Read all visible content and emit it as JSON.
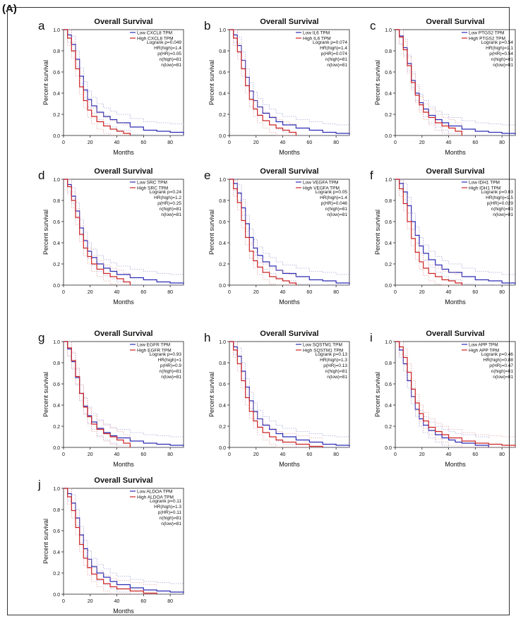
{
  "figure_label": "(A)",
  "colors": {
    "low": "#2b2bb5",
    "high": "#cc2222",
    "ci_low": "#8080c8",
    "ci_high": "#d78080",
    "axis": "#222222"
  },
  "chart_data": [
    {
      "panel": "a",
      "type": "line",
      "title": "Overall Survival",
      "xlabel": "Months",
      "ylabel": "Percent survival",
      "xlim": [
        0,
        90
      ],
      "ylim": [
        0,
        1
      ],
      "xticks": [
        0,
        20,
        40,
        60,
        80
      ],
      "yticks": [
        0.0,
        0.2,
        0.4,
        0.6,
        0.8,
        1.0
      ],
      "legend": [
        "Low CXCL8 TPM",
        "High CXCL8 TPM"
      ],
      "stats": [
        "Logrank p=0.049",
        "HR(high)=1.4",
        "p(HR)=0.05",
        "n(high)=81",
        "n(low)=81"
      ],
      "series": [
        {
          "name": "Low CXCL8 TPM",
          "x": [
            0,
            3,
            6,
            9,
            12,
            15,
            18,
            21,
            25,
            30,
            35,
            40,
            50,
            60,
            70,
            80,
            90
          ],
          "values": [
            1.0,
            0.95,
            0.86,
            0.72,
            0.56,
            0.43,
            0.34,
            0.28,
            0.22,
            0.18,
            0.15,
            0.12,
            0.08,
            0.05,
            0.04,
            0.03,
            0.01
          ]
        },
        {
          "name": "High CXCL8 TPM",
          "x": [
            0,
            3,
            6,
            9,
            12,
            15,
            18,
            21,
            25,
            30,
            35,
            40,
            45,
            50
          ],
          "values": [
            1.0,
            0.92,
            0.8,
            0.63,
            0.46,
            0.33,
            0.24,
            0.18,
            0.13,
            0.09,
            0.06,
            0.04,
            0.02,
            0.0
          ]
        }
      ]
    },
    {
      "panel": "b",
      "type": "line",
      "title": "Overall Survival",
      "xlabel": "Months",
      "ylabel": "Percent survival",
      "xlim": [
        0,
        90
      ],
      "ylim": [
        0,
        1
      ],
      "xticks": [
        0,
        20,
        40,
        60,
        80
      ],
      "yticks": [
        0.0,
        0.2,
        0.4,
        0.6,
        0.8,
        1.0
      ],
      "legend": [
        "Low IL6 TPM",
        "High IL6 TPM"
      ],
      "stats": [
        "Logrank p=0.074",
        "HR(high)=1.4",
        "p(HR)=0.074",
        "n(high)=81",
        "n(low)=81"
      ],
      "series": [
        {
          "name": "Low IL6 TPM",
          "x": [
            0,
            3,
            6,
            9,
            12,
            15,
            18,
            21,
            25,
            30,
            35,
            40,
            50,
            60,
            70,
            80,
            90
          ],
          "values": [
            1.0,
            0.95,
            0.85,
            0.71,
            0.55,
            0.42,
            0.33,
            0.27,
            0.21,
            0.17,
            0.13,
            0.1,
            0.07,
            0.05,
            0.03,
            0.02,
            0.01
          ]
        },
        {
          "name": "High IL6 TPM",
          "x": [
            0,
            3,
            6,
            9,
            12,
            15,
            18,
            21,
            25,
            30,
            35,
            40,
            45,
            50
          ],
          "values": [
            1.0,
            0.92,
            0.79,
            0.63,
            0.47,
            0.34,
            0.25,
            0.19,
            0.14,
            0.1,
            0.07,
            0.05,
            0.03,
            0.0
          ]
        }
      ]
    },
    {
      "panel": "c",
      "type": "line",
      "title": "Overall Survival",
      "xlabel": "Months",
      "ylabel": "Percent survival",
      "xlim": [
        0,
        90
      ],
      "ylim": [
        0,
        1
      ],
      "xticks": [
        0,
        20,
        40,
        60,
        80
      ],
      "yticks": [
        0.0,
        0.2,
        0.4,
        0.6,
        0.8,
        1.0
      ],
      "legend": [
        "Low PTGS2 TPM",
        "High PTGS2 TPM"
      ],
      "stats": [
        "Logrank p=0.54",
        "HR(high)=1.1",
        "p(HR)=0.54",
        "n(high)=81",
        "n(low)=81"
      ],
      "series": [
        {
          "name": "Low PTGS2 TPM",
          "x": [
            0,
            3,
            6,
            9,
            12,
            15,
            18,
            21,
            25,
            30,
            35,
            40,
            50,
            60,
            70,
            80,
            90
          ],
          "values": [
            1.0,
            0.94,
            0.83,
            0.68,
            0.52,
            0.4,
            0.31,
            0.25,
            0.19,
            0.15,
            0.12,
            0.09,
            0.06,
            0.04,
            0.03,
            0.02,
            0.01
          ]
        },
        {
          "name": "High PTGS2 TPM",
          "x": [
            0,
            3,
            6,
            9,
            12,
            15,
            18,
            21,
            25,
            30,
            35,
            40,
            45,
            50
          ],
          "values": [
            1.0,
            0.93,
            0.81,
            0.66,
            0.5,
            0.38,
            0.29,
            0.22,
            0.17,
            0.12,
            0.09,
            0.07,
            0.04,
            0.0
          ]
        }
      ]
    },
    {
      "panel": "d",
      "type": "line",
      "title": "Overall Survival",
      "xlabel": "Months",
      "ylabel": "Percent survival",
      "xlim": [
        0,
        90
      ],
      "ylim": [
        0,
        1
      ],
      "xticks": [
        0,
        20,
        40,
        60,
        80
      ],
      "yticks": [
        0.0,
        0.2,
        0.4,
        0.6,
        0.8,
        1.0
      ],
      "legend": [
        "Low SRC TPM",
        "High SRC TPM"
      ],
      "stats": [
        "Logrank p=0.24",
        "HR(high)=1.2",
        "p(HR)=0.25",
        "n(high)=81",
        "n(low)=81"
      ],
      "series": [
        {
          "name": "Low SRC TPM",
          "x": [
            0,
            3,
            6,
            9,
            12,
            15,
            18,
            21,
            25,
            30,
            35,
            40,
            50,
            60,
            70,
            80,
            90
          ],
          "values": [
            1.0,
            0.95,
            0.84,
            0.7,
            0.54,
            0.42,
            0.32,
            0.26,
            0.2,
            0.16,
            0.13,
            0.1,
            0.07,
            0.05,
            0.03,
            0.02,
            0.01
          ]
        },
        {
          "name": "High SRC TPM",
          "x": [
            0,
            3,
            6,
            9,
            12,
            15,
            18,
            21,
            25,
            30,
            35,
            40,
            45,
            50
          ],
          "values": [
            1.0,
            0.93,
            0.8,
            0.64,
            0.48,
            0.35,
            0.27,
            0.2,
            0.15,
            0.11,
            0.08,
            0.06,
            0.03,
            0.0
          ]
        }
      ]
    },
    {
      "panel": "e",
      "type": "line",
      "title": "Overall Survival",
      "xlabel": "Months",
      "ylabel": "Percent survival",
      "xlim": [
        0,
        90
      ],
      "ylim": [
        0,
        1
      ],
      "xticks": [
        0,
        20,
        40,
        60,
        80
      ],
      "yticks": [
        0.0,
        0.2,
        0.4,
        0.6,
        0.8,
        1.0
      ],
      "legend": [
        "Low VEGFA TPM",
        "High VEGFA TPM"
      ],
      "stats": [
        "Logrank p=0.05",
        "HR(high)=1.4",
        "p(HR)=0.046",
        "n(high)=81",
        "n(low)=81"
      ],
      "series": [
        {
          "name": "Low VEGFA TPM",
          "x": [
            0,
            3,
            6,
            9,
            12,
            15,
            18,
            21,
            25,
            30,
            35,
            40,
            50,
            60,
            70,
            80,
            90
          ],
          "values": [
            1.0,
            0.96,
            0.87,
            0.73,
            0.58,
            0.45,
            0.35,
            0.28,
            0.22,
            0.18,
            0.14,
            0.11,
            0.08,
            0.05,
            0.04,
            0.02,
            0.01
          ]
        },
        {
          "name": "High VEGFA TPM",
          "x": [
            0,
            3,
            6,
            9,
            12,
            15,
            18,
            21,
            25,
            30,
            35,
            40,
            45,
            50
          ],
          "values": [
            1.0,
            0.91,
            0.78,
            0.61,
            0.45,
            0.32,
            0.23,
            0.17,
            0.12,
            0.08,
            0.06,
            0.04,
            0.02,
            0.0
          ]
        }
      ]
    },
    {
      "panel": "f",
      "type": "line",
      "title": "Overall Survival",
      "xlabel": "Months",
      "ylabel": "Percent survival",
      "xlim": [
        0,
        90
      ],
      "ylim": [
        0,
        1
      ],
      "xticks": [
        0,
        20,
        40,
        60,
        80
      ],
      "yticks": [
        0.0,
        0.2,
        0.4,
        0.6,
        0.8,
        1.0
      ],
      "legend": [
        "Low IDH1 TPM",
        "High IDH1 TPM"
      ],
      "stats": [
        "Logrank p=0.03",
        "HR(high)=1.5",
        "p(HR)=0.029",
        "n(high)=81",
        "n(low)=81"
      ],
      "series": [
        {
          "name": "Low IDH1 TPM",
          "x": [
            0,
            3,
            6,
            9,
            12,
            15,
            18,
            21,
            25,
            30,
            35,
            40,
            50,
            60,
            70,
            80,
            90
          ],
          "values": [
            1.0,
            0.96,
            0.88,
            0.75,
            0.6,
            0.47,
            0.37,
            0.3,
            0.24,
            0.19,
            0.15,
            0.12,
            0.08,
            0.05,
            0.04,
            0.02,
            0.01
          ]
        },
        {
          "name": "High IDH1 TPM",
          "x": [
            0,
            3,
            6,
            9,
            12,
            15,
            18,
            21,
            25,
            30,
            35,
            40,
            45,
            50
          ],
          "values": [
            1.0,
            0.91,
            0.77,
            0.6,
            0.44,
            0.31,
            0.22,
            0.16,
            0.11,
            0.08,
            0.05,
            0.04,
            0.02,
            0.0
          ]
        }
      ]
    },
    {
      "panel": "g",
      "type": "line",
      "title": "Overall Survival",
      "xlabel": "Months",
      "ylabel": "Percent survival",
      "xlim": [
        0,
        90
      ],
      "ylim": [
        0,
        1
      ],
      "xticks": [
        0,
        20,
        40,
        60,
        80
      ],
      "yticks": [
        0.0,
        0.2,
        0.4,
        0.6,
        0.8,
        1.0
      ],
      "legend": [
        "Low EGFR TPM",
        "High EGFR TPM"
      ],
      "stats": [
        "Logrank p=0.93",
        "HR(high)=1",
        "p(HR)=0.9",
        "n(high)=81",
        "n(low)=81"
      ],
      "series": [
        {
          "name": "Low EGFR TPM",
          "x": [
            0,
            3,
            6,
            9,
            12,
            15,
            18,
            21,
            25,
            30,
            35,
            40,
            50,
            60,
            70,
            80,
            90
          ],
          "values": [
            1.0,
            0.93,
            0.81,
            0.66,
            0.51,
            0.39,
            0.3,
            0.24,
            0.18,
            0.14,
            0.11,
            0.09,
            0.06,
            0.04,
            0.03,
            0.02,
            0.01
          ]
        },
        {
          "name": "High EGFR TPM",
          "x": [
            0,
            3,
            6,
            9,
            12,
            15,
            18,
            21,
            25,
            30,
            35,
            40,
            45,
            50
          ],
          "values": [
            1.0,
            0.94,
            0.82,
            0.67,
            0.51,
            0.38,
            0.29,
            0.22,
            0.17,
            0.13,
            0.1,
            0.07,
            0.04,
            0.0
          ]
        }
      ]
    },
    {
      "panel": "h",
      "type": "line",
      "title": "Overall Survival",
      "xlabel": "Months",
      "ylabel": "Percent survival",
      "xlim": [
        0,
        90
      ],
      "ylim": [
        0,
        1
      ],
      "xticks": [
        0,
        20,
        40,
        60,
        80
      ],
      "yticks": [
        0.0,
        0.2,
        0.4,
        0.6,
        0.8,
        1.0
      ],
      "legend": [
        "Low SQSTM1 TPM",
        "High SQSTM1 TPM"
      ],
      "stats": [
        "Logrank p=0.13",
        "HR(high)=1.3",
        "p(HR)=0.13",
        "n(high)=81",
        "n(low)=81"
      ],
      "series": [
        {
          "name": "Low SQSTM1 TPM",
          "x": [
            0,
            3,
            6,
            9,
            12,
            15,
            18,
            21,
            25,
            30,
            35,
            40,
            50,
            60,
            70,
            80,
            90
          ],
          "values": [
            1.0,
            0.95,
            0.86,
            0.72,
            0.57,
            0.44,
            0.34,
            0.27,
            0.21,
            0.17,
            0.13,
            0.1,
            0.07,
            0.05,
            0.03,
            0.02,
            0.01
          ]
        },
        {
          "name": "High SQSTM1 TPM",
          "x": [
            0,
            3,
            6,
            9,
            12,
            15,
            18,
            21,
            25,
            30,
            35,
            40,
            50,
            60,
            70
          ],
          "values": [
            1.0,
            0.92,
            0.79,
            0.63,
            0.47,
            0.34,
            0.25,
            0.19,
            0.14,
            0.1,
            0.07,
            0.05,
            0.03,
            0.01,
            0.0
          ]
        }
      ]
    },
    {
      "panel": "i",
      "type": "line",
      "title": "Overall Survival",
      "xlabel": "Months",
      "ylabel": "Percent survival",
      "xlim": [
        0,
        90
      ],
      "ylim": [
        0,
        1
      ],
      "xticks": [
        0,
        20,
        40,
        60,
        80
      ],
      "yticks": [
        0.0,
        0.2,
        0.4,
        0.6,
        0.8,
        1.0
      ],
      "legend": [
        "Low APP TPM",
        "High APP TPM"
      ],
      "stats": [
        "Logrank p=0.46",
        "HR(high)=0.88",
        "p(HR)=0.47",
        "n(high)=81",
        "n(low)=81"
      ],
      "series": [
        {
          "name": "Low APP TPM",
          "x": [
            0,
            3,
            6,
            9,
            12,
            15,
            18,
            21,
            25,
            30,
            35,
            40,
            45,
            50,
            60,
            70
          ],
          "values": [
            1.0,
            0.92,
            0.79,
            0.63,
            0.48,
            0.36,
            0.27,
            0.21,
            0.16,
            0.12,
            0.09,
            0.07,
            0.05,
            0.04,
            0.02,
            0.0
          ]
        },
        {
          "name": "High APP TPM",
          "x": [
            0,
            3,
            6,
            9,
            12,
            15,
            18,
            21,
            25,
            30,
            35,
            40,
            50,
            60,
            70,
            80,
            90
          ],
          "values": [
            1.0,
            0.95,
            0.85,
            0.71,
            0.55,
            0.42,
            0.32,
            0.25,
            0.19,
            0.15,
            0.12,
            0.09,
            0.06,
            0.04,
            0.03,
            0.02,
            0.01
          ]
        }
      ]
    },
    {
      "panel": "j",
      "type": "line",
      "title": "Overall Survival",
      "xlabel": "Months",
      "ylabel": "Percent survival",
      "xlim": [
        0,
        90
      ],
      "ylim": [
        0,
        1
      ],
      "xticks": [
        0,
        20,
        40,
        60,
        80
      ],
      "yticks": [
        0.0,
        0.2,
        0.4,
        0.6,
        0.8,
        1.0
      ],
      "legend": [
        "Low ALDOA TPM",
        "High ALDOA TPM"
      ],
      "stats": [
        "Logrank p=0.11",
        "HR(high)=1.3",
        "p(HR)=0.11",
        "n(high)=81",
        "n(low)=81"
      ],
      "series": [
        {
          "name": "Low ALDOA TPM",
          "x": [
            0,
            3,
            6,
            9,
            12,
            15,
            18,
            21,
            25,
            30,
            35,
            40,
            50,
            60,
            70,
            80,
            90
          ],
          "values": [
            1.0,
            0.95,
            0.86,
            0.72,
            0.56,
            0.43,
            0.33,
            0.26,
            0.2,
            0.16,
            0.12,
            0.09,
            0.06,
            0.04,
            0.03,
            0.02,
            0.01
          ]
        },
        {
          "name": "High ALDOA TPM",
          "x": [
            0,
            3,
            6,
            9,
            12,
            15,
            18,
            21,
            25,
            30,
            35,
            40,
            50,
            60,
            70
          ],
          "values": [
            1.0,
            0.92,
            0.79,
            0.63,
            0.47,
            0.34,
            0.25,
            0.19,
            0.14,
            0.1,
            0.07,
            0.05,
            0.03,
            0.01,
            0.0
          ]
        }
      ]
    }
  ]
}
